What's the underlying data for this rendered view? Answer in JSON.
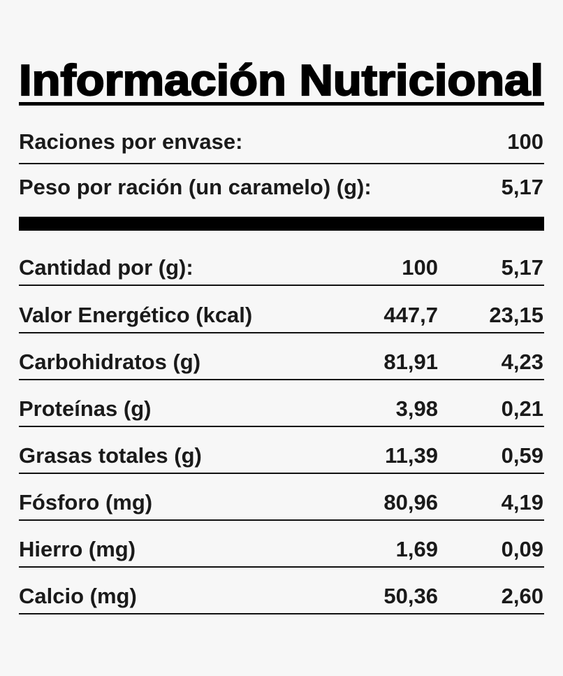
{
  "header": {
    "title": "Información Nutricional"
  },
  "servings": {
    "rows": [
      [
        "Raciones por envase:",
        "100"
      ],
      [
        "Peso por ración (un caramelo) (g):",
        "5,17"
      ]
    ]
  },
  "table": {
    "header": [
      "Cantidad por (g):",
      "100",
      "5,17"
    ],
    "rows": [
      [
        "Valor Energético (kcal)",
        "447,7",
        "23,15"
      ],
      [
        "Carbohidratos (g)",
        "81,91",
        "4,23"
      ],
      [
        "Proteínas (g)",
        "3,98",
        "0,21"
      ],
      [
        "Grasas totales (g)",
        "11,39",
        "0,59"
      ],
      [
        "Fósforo (mg)",
        "80,96",
        "4,19"
      ],
      [
        "Hierro (mg)",
        "1,69",
        "0,09"
      ],
      [
        "Calcio (mg)",
        "50,36",
        "2,60"
      ]
    ]
  }
}
